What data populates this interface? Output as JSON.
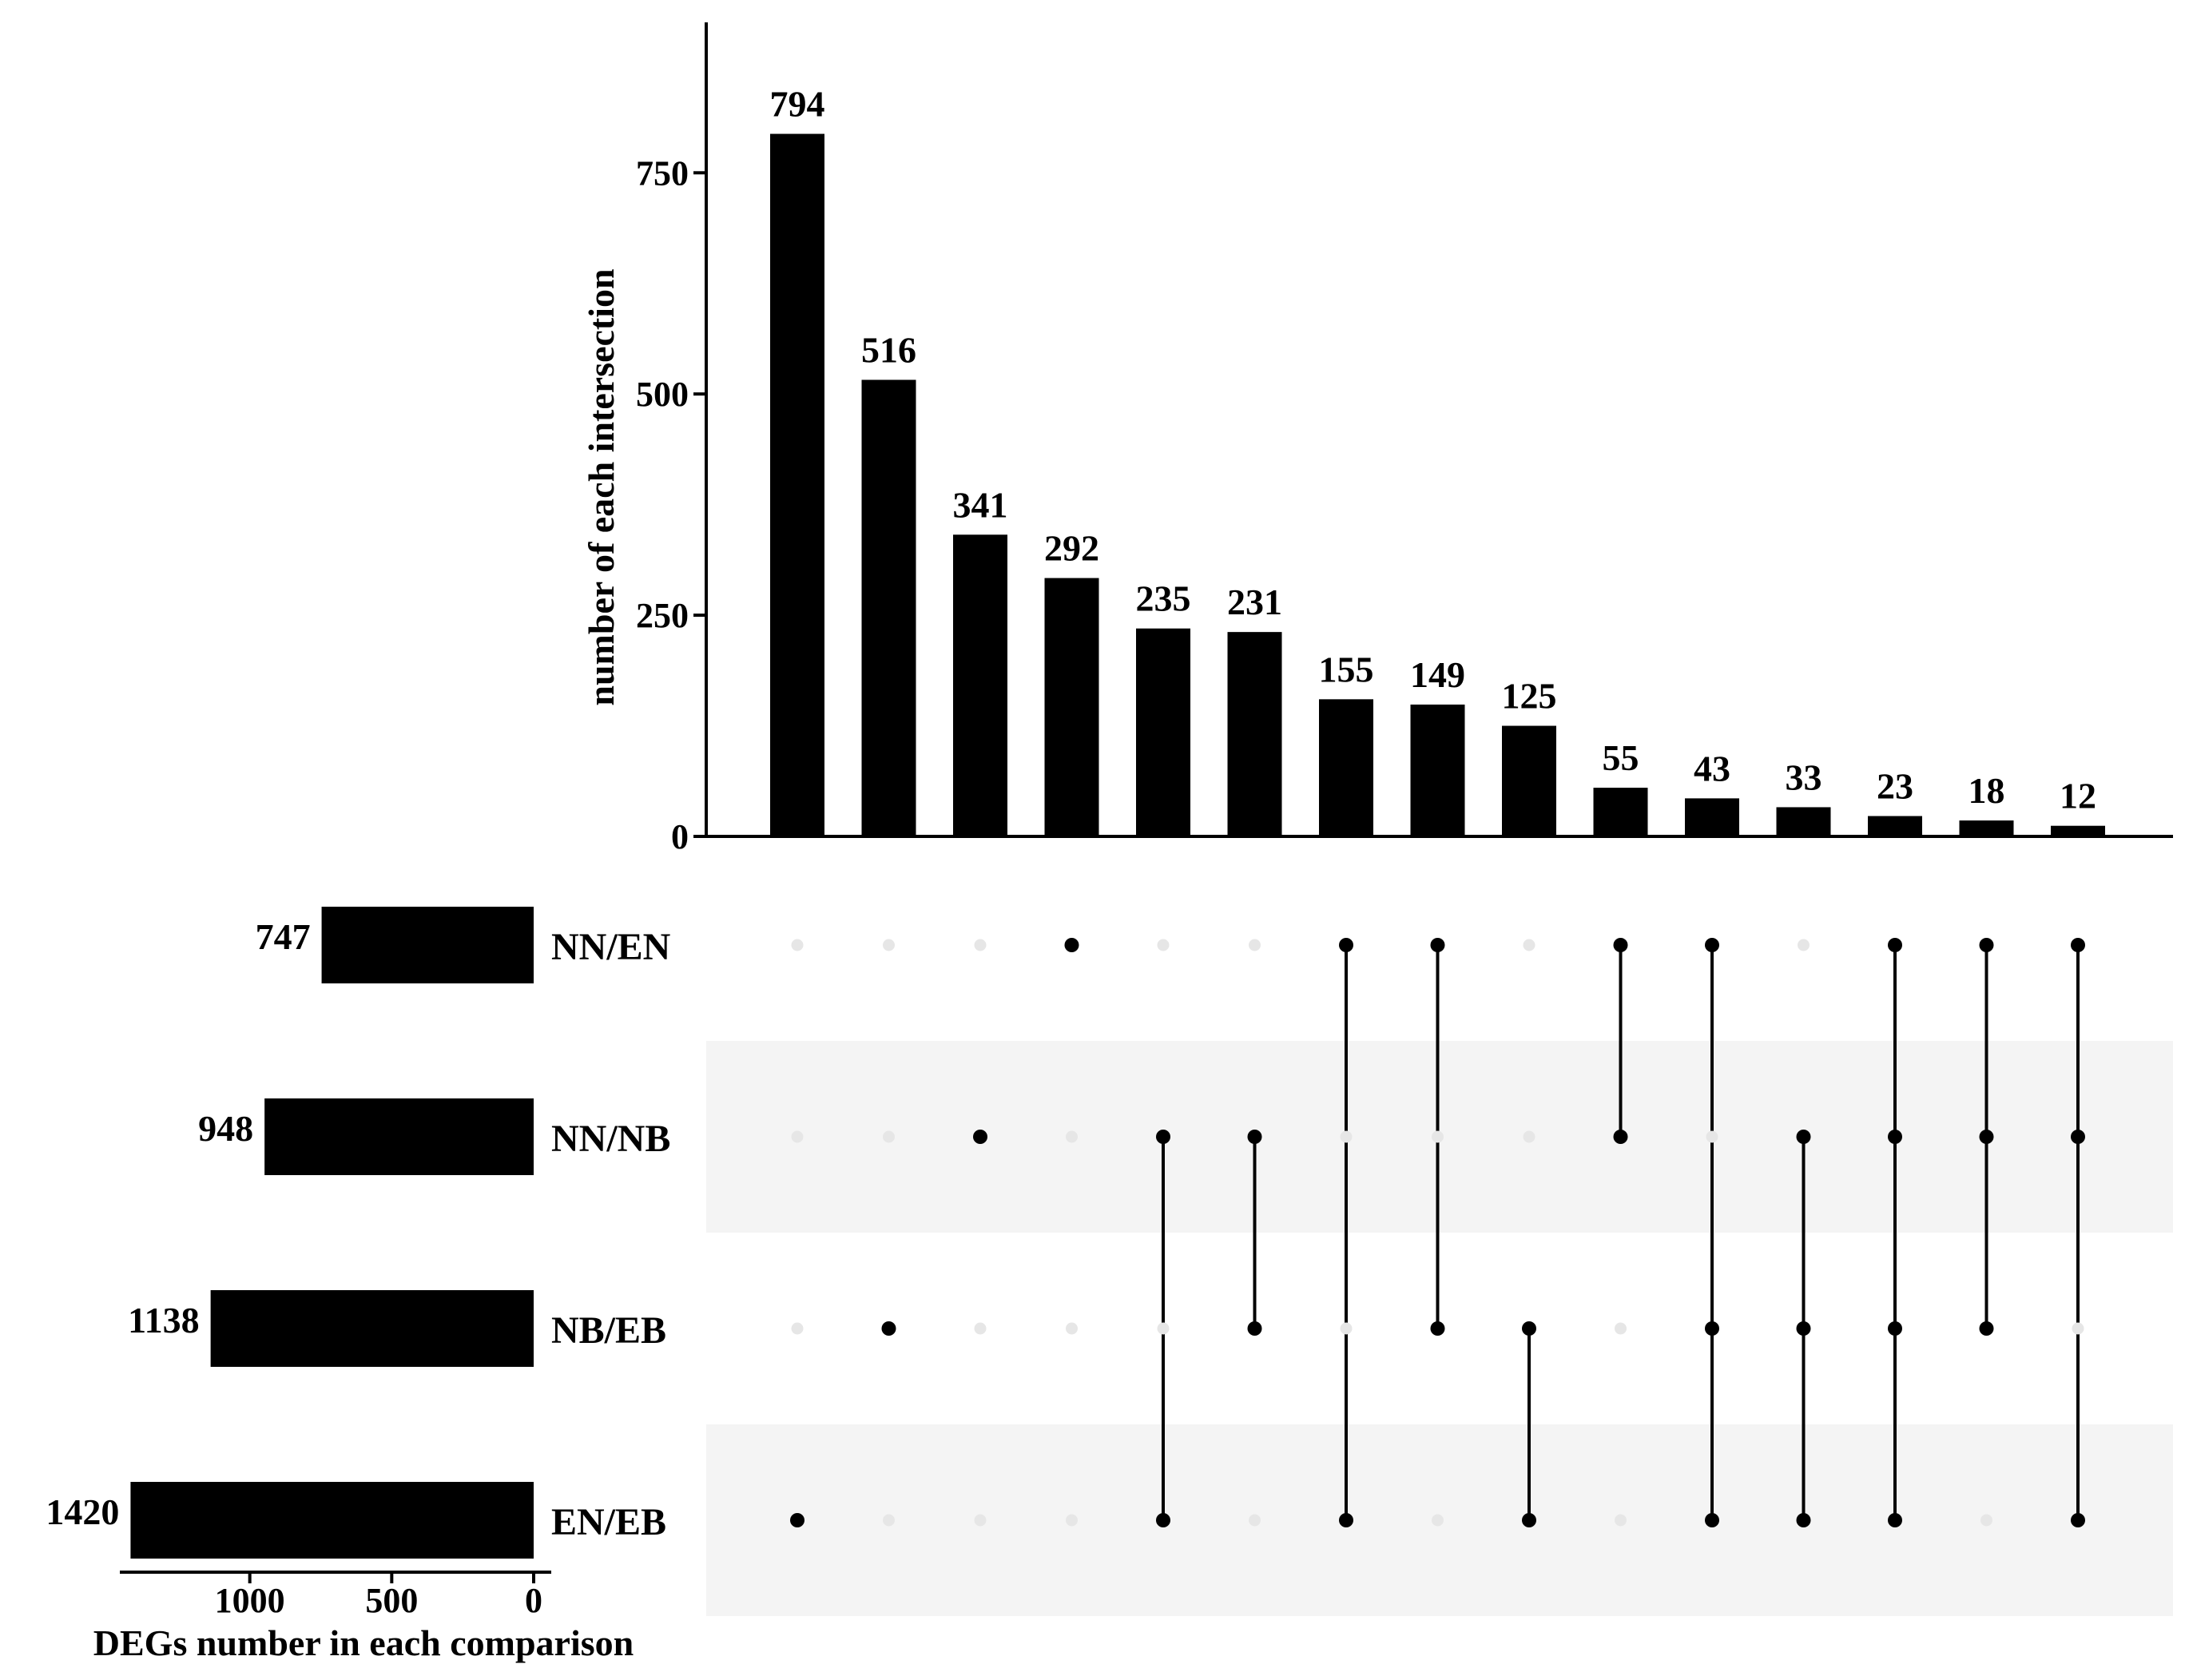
{
  "chart_data": {
    "type": "upset",
    "intersections": {
      "ylabel": "number of each intersection",
      "yticks": [
        0,
        250,
        500,
        750
      ],
      "ylim": [
        0,
        920
      ],
      "values": [
        794,
        516,
        341,
        292,
        235,
        231,
        155,
        149,
        125,
        55,
        43,
        33,
        23,
        18,
        12
      ],
      "labels": [
        "794",
        "516",
        "341",
        "292",
        "235",
        "231",
        "155",
        "149",
        "125",
        "55",
        "43",
        "33",
        "23",
        "18",
        "12"
      ],
      "membership": [
        [
          "EN/EB"
        ],
        [
          "NB/EB"
        ],
        [
          "NN/NB"
        ],
        [
          "NN/EN"
        ],
        [
          "NN/NB",
          "EN/EB"
        ],
        [
          "NN/NB",
          "NB/EB"
        ],
        [
          "NN/EN",
          "EN/EB"
        ],
        [
          "NN/EN",
          "NB/EB"
        ],
        [
          "NB/EB",
          "EN/EB"
        ],
        [
          "NN/EN",
          "NN/NB"
        ],
        [
          "NN/EN",
          "NB/EB",
          "EN/EB"
        ],
        [
          "NN/NB",
          "NB/EB",
          "EN/EB"
        ],
        [
          "NN/EN",
          "NN/NB",
          "NB/EB",
          "EN/EB"
        ],
        [
          "NN/EN",
          "NN/NB",
          "NB/EB"
        ],
        [
          "NN/EN",
          "NN/NB",
          "EN/EB"
        ]
      ]
    },
    "sets": {
      "xlabel": "DEGs number in each comparison",
      "xticks": [
        1000,
        500,
        0
      ],
      "xlim": [
        1500,
        0
      ],
      "names": [
        "NN/EN",
        "NN/NB",
        "NB/EB",
        "EN/EB"
      ],
      "values": [
        747,
        948,
        1138,
        1420
      ],
      "labels": [
        "747",
        "948",
        "1138",
        "1420"
      ]
    },
    "colors": {
      "bar": "#000000",
      "dot_active": "#000000",
      "dot_inactive": "#e6e6e6",
      "stripe": "#f4f4f4"
    }
  }
}
